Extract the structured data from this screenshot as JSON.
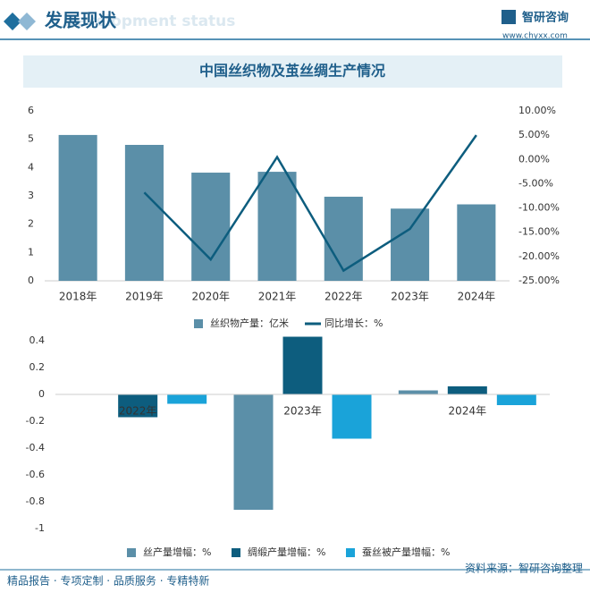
{
  "header": {
    "title": "发展现状",
    "subtitle": "Development status"
  },
  "logo": {
    "name": "智研咨询",
    "url": "www.chyxx.com"
  },
  "panel_title": "中国丝织物及茧丝绸生产情况",
  "footer": {
    "left": "精品报告 · 专项定制 · 品质服务 · 专精特新",
    "source": "资料来源：智研咨询整理"
  },
  "chart_data": [
    {
      "type": "bar-line",
      "categories": [
        "2018年",
        "2019年",
        "2020年",
        "2021年",
        "2022年",
        "2023年",
        "2024年"
      ],
      "series": [
        {
          "name": "丝织物产量：亿米",
          "color": "#5b8fa8",
          "type": "bar",
          "values": [
            5.15,
            4.8,
            3.82,
            3.85,
            2.97,
            2.55,
            2.7
          ]
        },
        {
          "name": "同比增长：%",
          "color": "#0d5d7e",
          "type": "line",
          "axis": "y2",
          "values": [
            null,
            -6.8,
            -20.6,
            0.5,
            -22.9,
            -14.3,
            5.0
          ]
        }
      ],
      "ylim": [
        0,
        6
      ],
      "yticks": [
        0,
        1,
        2,
        3,
        4,
        5,
        6
      ],
      "y2lim": [
        -25,
        10
      ],
      "y2ticks": [
        {
          "value": -25,
          "label": "-25.00%"
        },
        {
          "value": -20,
          "label": "-20.00%"
        },
        {
          "value": -15,
          "label": "-15.00%"
        },
        {
          "value": -10,
          "label": "-10.00%"
        },
        {
          "value": -5,
          "label": "-5.00%"
        },
        {
          "value": 0,
          "label": "0.00%"
        },
        {
          "value": 5,
          "label": "5.00%"
        },
        {
          "value": 10,
          "label": "10.00%"
        }
      ],
      "legend": "bottom"
    },
    {
      "type": "grouped-bar",
      "categories": [
        "2022年",
        "2023年",
        "2024年"
      ],
      "series": [
        {
          "name": "丝产量增幅：%",
          "color": "#5b8fa8",
          "values": [
            null,
            -0.86,
            0.03
          ]
        },
        {
          "name": "绸缎产量增幅：%",
          "color": "#0d5d7e",
          "values": [
            -0.17,
            0.43,
            0.06
          ]
        },
        {
          "name": "蚕丝被产量增幅：%",
          "color": "#1aa3d9",
          "values": [
            -0.07,
            -0.33,
            -0.08
          ]
        }
      ],
      "ylim": [
        -1,
        0.5
      ],
      "yticks": [
        -1,
        -0.8,
        -0.6,
        -0.4,
        -0.2,
        0,
        0.2,
        0.4
      ],
      "legend": "bottom"
    }
  ]
}
